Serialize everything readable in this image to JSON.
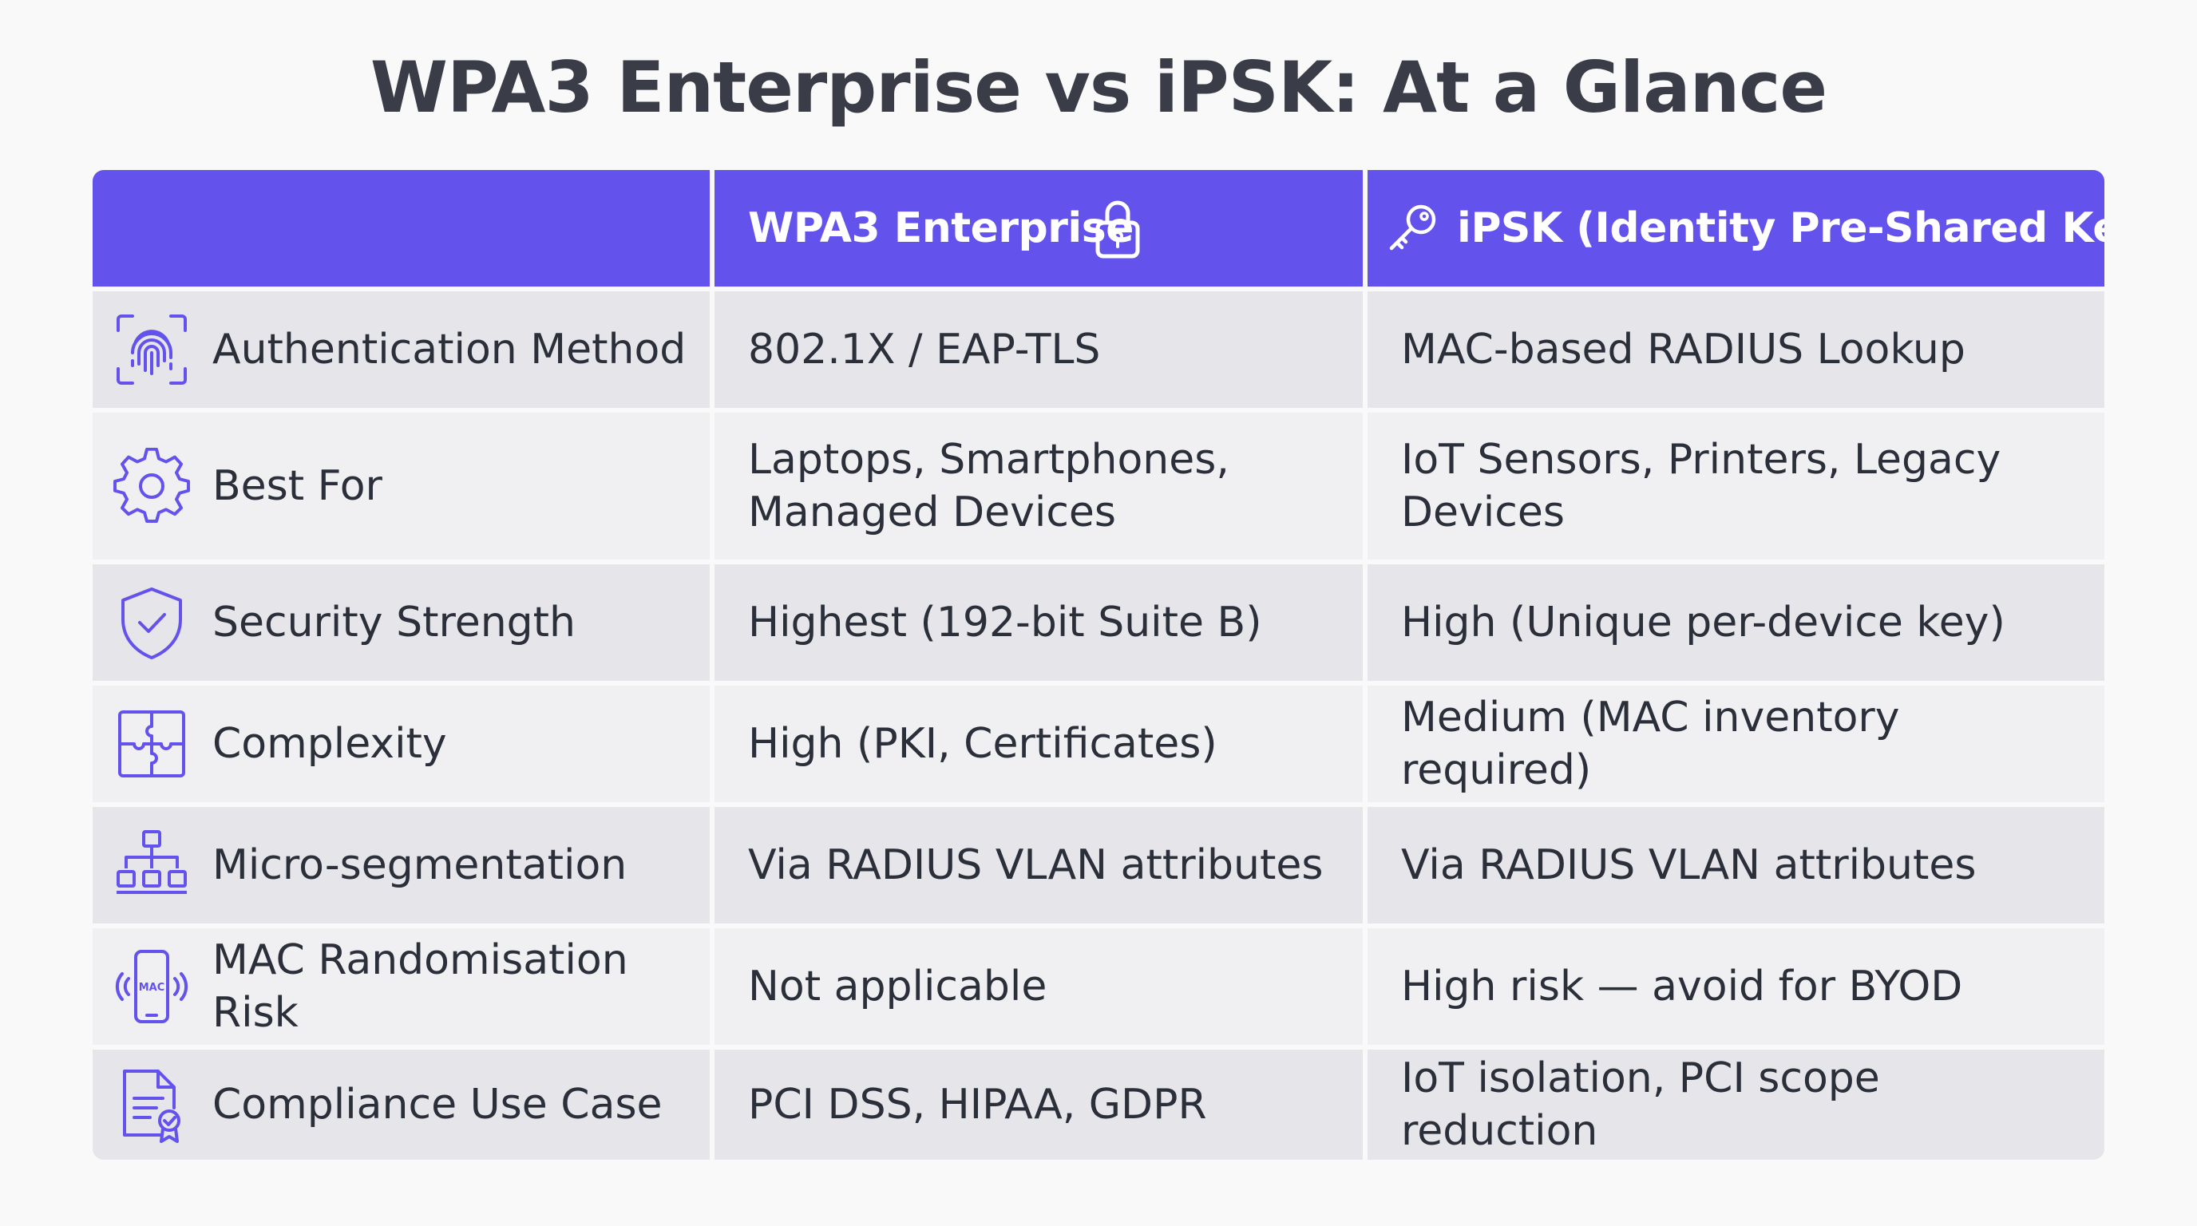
{
  "title": "WPA3 Enterprise vs iPSK: At a Glance",
  "colors": {
    "accent": "#6352EC",
    "header_text": "#FFFFFF",
    "row_dark": "#E5E5EA",
    "row_light": "#F0F0F3",
    "text": "#2B2F3A"
  },
  "header": {
    "col1": "",
    "col2": "WPA3 Enterprise",
    "col2_icon": "padlock-icon",
    "col3": "iPSK (Identity Pre-Shared Key)",
    "col3_icon": "key-icon"
  },
  "rows": [
    {
      "icon": "fingerprint-icon",
      "label": "Authentication Method",
      "wpa3": "802.1X / EAP-TLS",
      "ipsk": "MAC-based RADIUS Lookup"
    },
    {
      "icon": "gear-icon",
      "label": "Best For",
      "wpa3": "Laptops, Smartphones,\nManaged Devices",
      "ipsk": "IoT Sensors, Printers, Legacy\nDevices"
    },
    {
      "icon": "shield-check-icon",
      "label": "Security Strength",
      "wpa3": "Highest (192-bit Suite B)",
      "ipsk": "High (Unique per-device key)"
    },
    {
      "icon": "puzzle-icon",
      "label": "Complexity",
      "wpa3": "High (PKI, Certificates)",
      "ipsk": "Medium (MAC inventory required)"
    },
    {
      "icon": "network-hierarchy-icon",
      "label": "Micro-segmentation",
      "wpa3": "Via RADIUS VLAN attributes",
      "ipsk": "Via RADIUS VLAN attributes"
    },
    {
      "icon": "mac-phone-icon",
      "icon_text": "MAC",
      "label": "MAC Randomisation Risk",
      "wpa3": "Not applicable",
      "ipsk": "High risk — avoid for BYOD"
    },
    {
      "icon": "certificate-document-icon",
      "label": "Compliance Use Case",
      "wpa3": "PCI DSS, HIPAA, GDPR",
      "ipsk": "IoT isolation, PCI scope reduction"
    }
  ]
}
